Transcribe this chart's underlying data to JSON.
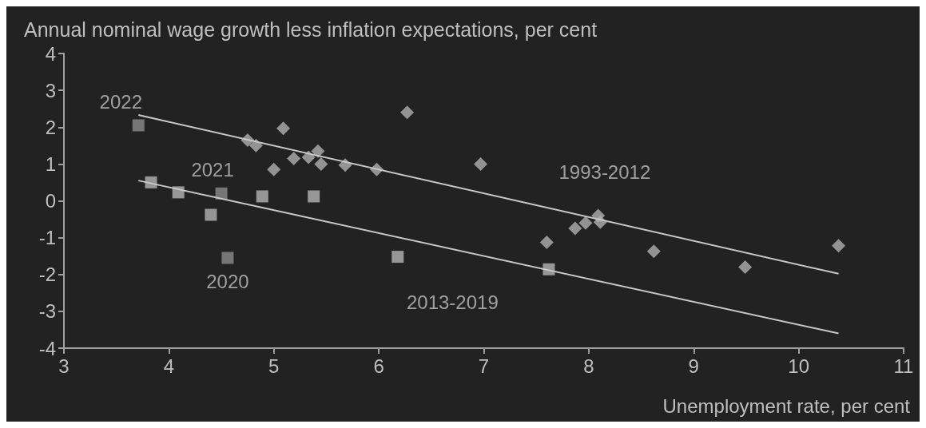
{
  "chart_data": {
    "type": "scatter",
    "ylabel": "Annual nominal wage growth less inflation expectations, per cent",
    "xlabel": "Unemployment rate, per cent",
    "xlim": [
      3,
      11
    ],
    "xticks": [
      3,
      4,
      5,
      6,
      7,
      8,
      9,
      10,
      11
    ],
    "ylim": [
      -4,
      4
    ],
    "yticks": [
      -4,
      -3,
      -2,
      -1,
      0,
      1,
      2,
      3,
      4
    ],
    "grid": false,
    "series": [
      {
        "type": "scatter",
        "marker": "diamond",
        "color": "#b0b0b0",
        "x": [
          4.75,
          4.83,
          5.09,
          5.0,
          5.19,
          5.33,
          5.42,
          5.45,
          5.68,
          5.98,
          6.27,
          6.97,
          7.6,
          7.87,
          7.97,
          8.09,
          8.11,
          8.62,
          9.49,
          10.38
        ],
        "values": [
          1.65,
          1.5,
          1.97,
          0.85,
          1.15,
          1.18,
          1.35,
          1.0,
          0.97,
          0.85,
          2.4,
          1.0,
          -1.13,
          -0.75,
          -0.6,
          -0.4,
          -0.58,
          -1.37,
          -1.8,
          -1.22
        ]
      },
      {
        "type": "scatter",
        "marker": "square",
        "color": "#b4b4b4",
        "x": [
          3.83,
          4.09,
          4.4,
          4.89,
          5.38,
          6.18,
          7.62
        ],
        "values": [
          0.5,
          0.23,
          -0.38,
          0.12,
          0.12,
          -1.52,
          -1.86
        ]
      },
      {
        "type": "scatter",
        "marker": "square",
        "color": "#8c8c8c",
        "x": [
          3.71,
          4.5,
          4.56
        ],
        "values": [
          2.05,
          0.2,
          -1.55
        ]
      },
      {
        "type": "line",
        "marker": "none",
        "color": "#c8c8c8",
        "x": [
          3.71,
          10.38
        ],
        "values": [
          2.33,
          -1.98
        ]
      },
      {
        "type": "line",
        "marker": "none",
        "color": "#c8c8c8",
        "x": [
          3.71,
          10.38
        ],
        "values": [
          0.55,
          -3.6
        ]
      }
    ],
    "annotations": [
      {
        "text": "2022",
        "x": 3.71,
        "y": 2.05
      },
      {
        "text": "2021",
        "x": 4.5,
        "y": 0.2
      },
      {
        "text": "2020",
        "x": 4.56,
        "y": -1.55
      },
      {
        "text": "1993-2012",
        "x": 8.0,
        "y": -0.44
      },
      {
        "text": "2013-2019",
        "x": 6.9,
        "y": -1.43
      }
    ]
  }
}
